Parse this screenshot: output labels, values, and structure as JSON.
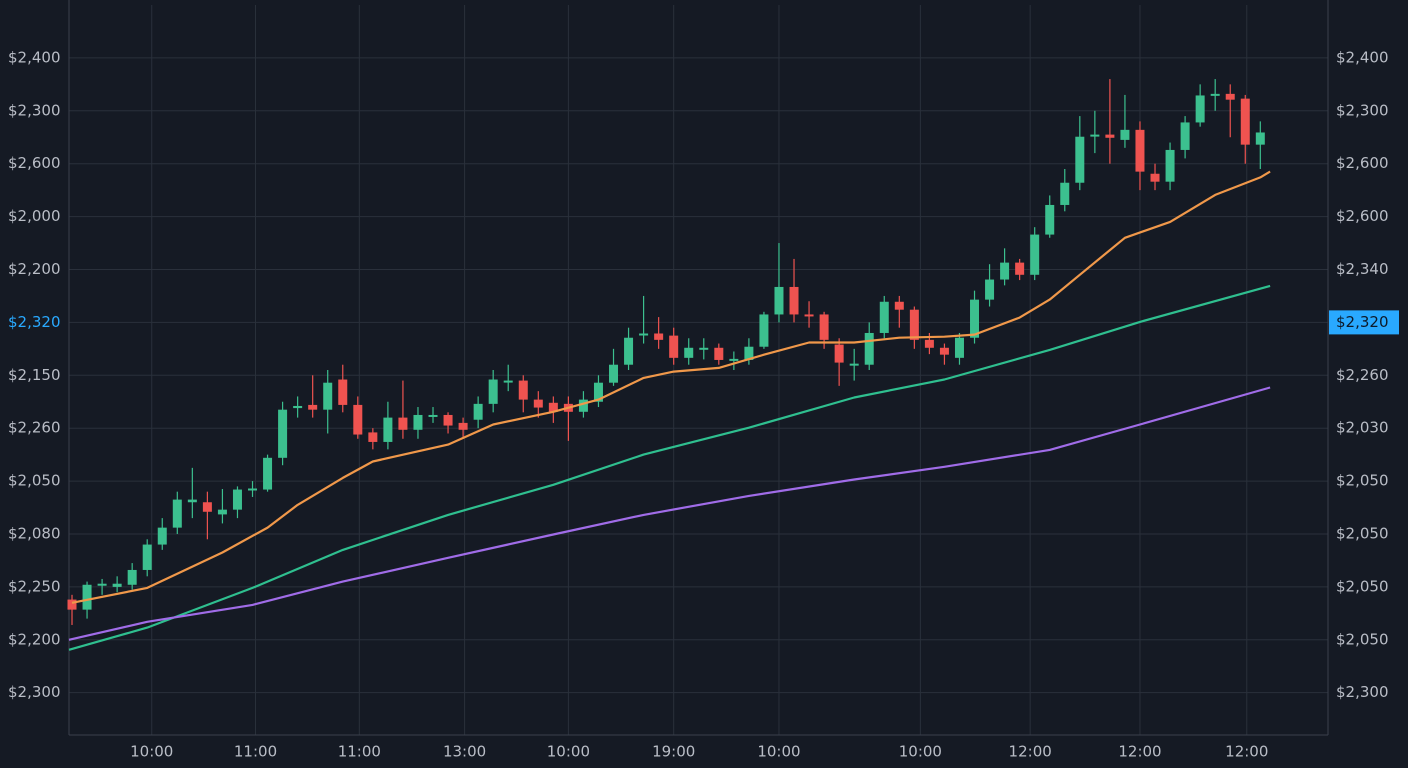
{
  "chart_data": {
    "type": "candlestick",
    "up_color": "#3cc08f",
    "down_color": "#ef5350",
    "grid": true,
    "xlim": [
      -0.2,
      83.5
    ],
    "ylim": [
      -0.8,
      13
    ],
    "y2lim": [
      -0.8,
      13
    ],
    "price_line": 7,
    "price_color": "#29a9ff",
    "xticks": [
      {
        "value": 5.3,
        "label": "10:00"
      },
      {
        "value": 12.2,
        "label": "11:00"
      },
      {
        "value": 19.1,
        "label": "11:00"
      },
      {
        "value": 26.1,
        "label": "13:00"
      },
      {
        "value": 33.0,
        "label": "10:00"
      },
      {
        "value": 40.0,
        "label": "19:00"
      },
      {
        "value": 47.0,
        "label": "10:00"
      },
      {
        "value": 56.4,
        "label": "10:00"
      },
      {
        "value": 63.7,
        "label": "12:00"
      },
      {
        "value": 71.0,
        "label": "12:00"
      },
      {
        "value": 78.1,
        "label": "12:00"
      }
    ],
    "yticks": [
      {
        "value": 12,
        "label": "$2,400"
      },
      {
        "value": 11,
        "label": "$2,300"
      },
      {
        "value": 10,
        "label": "$2,600"
      },
      {
        "value": 9,
        "label": "$2,000"
      },
      {
        "value": 8,
        "label": "$2,200"
      },
      {
        "value": 7,
        "label": "$2,320"
      },
      {
        "value": 6,
        "label": "$2,150"
      },
      {
        "value": 5,
        "label": "$2,260"
      },
      {
        "value": 4,
        "label": "$2,050"
      },
      {
        "value": 3,
        "label": "$2,080"
      },
      {
        "value": 2,
        "label": "$2,250"
      },
      {
        "value": 1,
        "label": "$2,200"
      },
      {
        "value": 0,
        "label": "$2,300"
      }
    ],
    "y2ticks": [
      {
        "value": 12,
        "label": "$2,400"
      },
      {
        "value": 11,
        "label": "$2,300"
      },
      {
        "value": 10,
        "label": "$2,600"
      },
      {
        "value": 9,
        "label": "$2,600"
      },
      {
        "value": 8,
        "label": "$2,340"
      },
      {
        "value": 7,
        "label": "$2,320"
      },
      {
        "value": 6,
        "label": "$2,260"
      },
      {
        "value": 5,
        "label": "$2,030"
      },
      {
        "value": 4,
        "label": "$2,050"
      },
      {
        "value": 3,
        "label": "$2,050"
      },
      {
        "value": 2,
        "label": "$2,050"
      },
      {
        "value": 1,
        "label": "$2,050"
      },
      {
        "value": 0,
        "label": "$2,300"
      }
    ],
    "open": [
      1.76,
      1.57,
      2.04,
      2.0,
      2.04,
      2.32,
      2.8,
      3.12,
      3.6,
      3.6,
      3.37,
      3.46,
      3.84,
      3.84,
      4.44,
      5.38,
      5.44,
      5.35,
      5.92,
      5.44,
      4.92,
      4.74,
      5.2,
      4.97,
      5.22,
      5.25,
      5.1,
      5.16,
      5.46,
      5.88,
      5.9,
      5.54,
      5.48,
      5.46,
      5.31,
      5.5,
      5.86,
      6.2,
      6.76,
      6.79,
      6.75,
      6.33,
      6.5,
      6.52,
      6.29,
      6.29,
      6.54,
      7.15,
      7.67,
      7.15,
      7.15,
      6.58,
      6.2,
      6.2,
      6.8,
      7.39,
      7.24,
      6.67,
      6.52,
      6.33,
      6.71,
      7.43,
      7.81,
      8.13,
      7.9,
      8.66,
      9.22,
      9.64,
      10.53,
      10.55,
      10.45,
      10.64,
      9.81,
      9.66,
      10.26,
      10.78,
      11.29,
      11.32,
      11.23,
      10.36
    ],
    "high": [
      1.85,
      2.1,
      2.15,
      2.2,
      2.45,
      2.9,
      3.3,
      3.8,
      4.25,
      3.8,
      3.85,
      3.9,
      4.0,
      4.5,
      5.5,
      5.6,
      6.0,
      6.1,
      6.2,
      5.6,
      5.0,
      5.5,
      5.9,
      5.4,
      5.4,
      5.3,
      5.2,
      5.6,
      6.1,
      6.2,
      6.0,
      5.7,
      5.6,
      5.6,
      5.7,
      6.0,
      6.5,
      6.9,
      7.5,
      7.1,
      6.9,
      6.7,
      6.7,
      6.6,
      6.45,
      6.7,
      7.2,
      8.5,
      8.2,
      7.4,
      7.2,
      6.7,
      6.5,
      7.0,
      7.5,
      7.5,
      7.3,
      6.8,
      6.6,
      6.8,
      7.6,
      8.1,
      8.4,
      8.2,
      8.8,
      9.4,
      9.9,
      10.9,
      11.0,
      11.6,
      11.3,
      10.8,
      10.0,
      10.4,
      10.9,
      11.5,
      11.6,
      11.5,
      11.3,
      10.8
    ],
    "low": [
      1.28,
      1.4,
      1.85,
      1.9,
      1.95,
      2.2,
      2.7,
      3.0,
      3.3,
      2.9,
      3.2,
      3.3,
      3.7,
      3.8,
      4.3,
      5.2,
      5.2,
      4.9,
      5.3,
      4.8,
      4.6,
      4.6,
      4.8,
      4.8,
      5.1,
      4.9,
      4.8,
      5.0,
      5.3,
      5.7,
      5.3,
      5.2,
      5.1,
      4.76,
      5.2,
      5.4,
      5.8,
      6.1,
      6.6,
      6.5,
      6.2,
      6.2,
      6.3,
      6.2,
      6.1,
      6.2,
      6.5,
      7.0,
      7.0,
      6.9,
      6.5,
      5.8,
      5.9,
      6.1,
      6.7,
      6.9,
      6.5,
      6.4,
      6.2,
      6.2,
      6.6,
      7.3,
      7.7,
      7.8,
      7.8,
      8.6,
      9.1,
      9.5,
      10.2,
      10.0,
      10.3,
      9.5,
      9.5,
      9.5,
      10.1,
      10.7,
      11.0,
      10.5,
      10.0,
      9.9
    ],
    "close": [
      1.57,
      2.04,
      2.06,
      2.06,
      2.32,
      2.8,
      3.12,
      3.65,
      3.65,
      3.42,
      3.46,
      3.84,
      3.86,
      4.44,
      5.35,
      5.42,
      5.35,
      5.86,
      5.44,
      4.88,
      4.74,
      5.2,
      4.97,
      5.25,
      5.25,
      5.05,
      4.97,
      5.46,
      5.92,
      5.9,
      5.54,
      5.39,
      5.31,
      5.31,
      5.54,
      5.86,
      6.2,
      6.71,
      6.79,
      6.67,
      6.33,
      6.52,
      6.52,
      6.29,
      6.31,
      6.54,
      7.15,
      7.67,
      7.15,
      7.13,
      6.67,
      6.24,
      6.22,
      6.8,
      7.39,
      7.24,
      6.67,
      6.52,
      6.39,
      6.71,
      7.43,
      7.81,
      8.13,
      7.9,
      8.66,
      9.22,
      9.64,
      10.51,
      10.55,
      10.49,
      10.64,
      9.85,
      9.66,
      10.26,
      10.78,
      11.29,
      11.32,
      11.21,
      10.36,
      10.59
    ],
    "series": [
      {
        "color": "#f0984a",
        "x": [
          0,
          5,
          10,
          13,
          15,
          18,
          20,
          25,
          28,
          32,
          35,
          38,
          40,
          43,
          46,
          49,
          52,
          55,
          58,
          60,
          63,
          65,
          67,
          70,
          73,
          76,
          79,
          79.65
        ],
        "values": [
          1.7,
          1.98,
          2.65,
          3.12,
          3.55,
          4.06,
          4.37,
          4.69,
          5.07,
          5.31,
          5.54,
          5.95,
          6.07,
          6.14,
          6.39,
          6.62,
          6.62,
          6.71,
          6.73,
          6.77,
          7.09,
          7.43,
          7.9,
          8.6,
          8.9,
          9.41,
          9.74,
          9.85
        ]
      },
      {
        "color": "#2fbf8f",
        "x": [
          -0.2,
          5,
          12,
          18,
          25,
          32,
          38,
          45,
          52,
          58,
          65,
          71,
          79.65
        ],
        "values": [
          0.81,
          1.23,
          1.98,
          2.7,
          3.36,
          3.93,
          4.5,
          5.01,
          5.58,
          5.92,
          6.48,
          7.01,
          7.69
        ]
      },
      {
        "color": "#a06ce8",
        "x": [
          -0.2,
          5,
          12,
          18,
          25,
          32,
          38,
          45,
          52,
          58,
          65,
          71,
          79.65
        ],
        "values": [
          1.0,
          1.34,
          1.66,
          2.1,
          2.55,
          2.99,
          3.36,
          3.72,
          4.03,
          4.27,
          4.59,
          5.07,
          5.77
        ]
      }
    ]
  }
}
